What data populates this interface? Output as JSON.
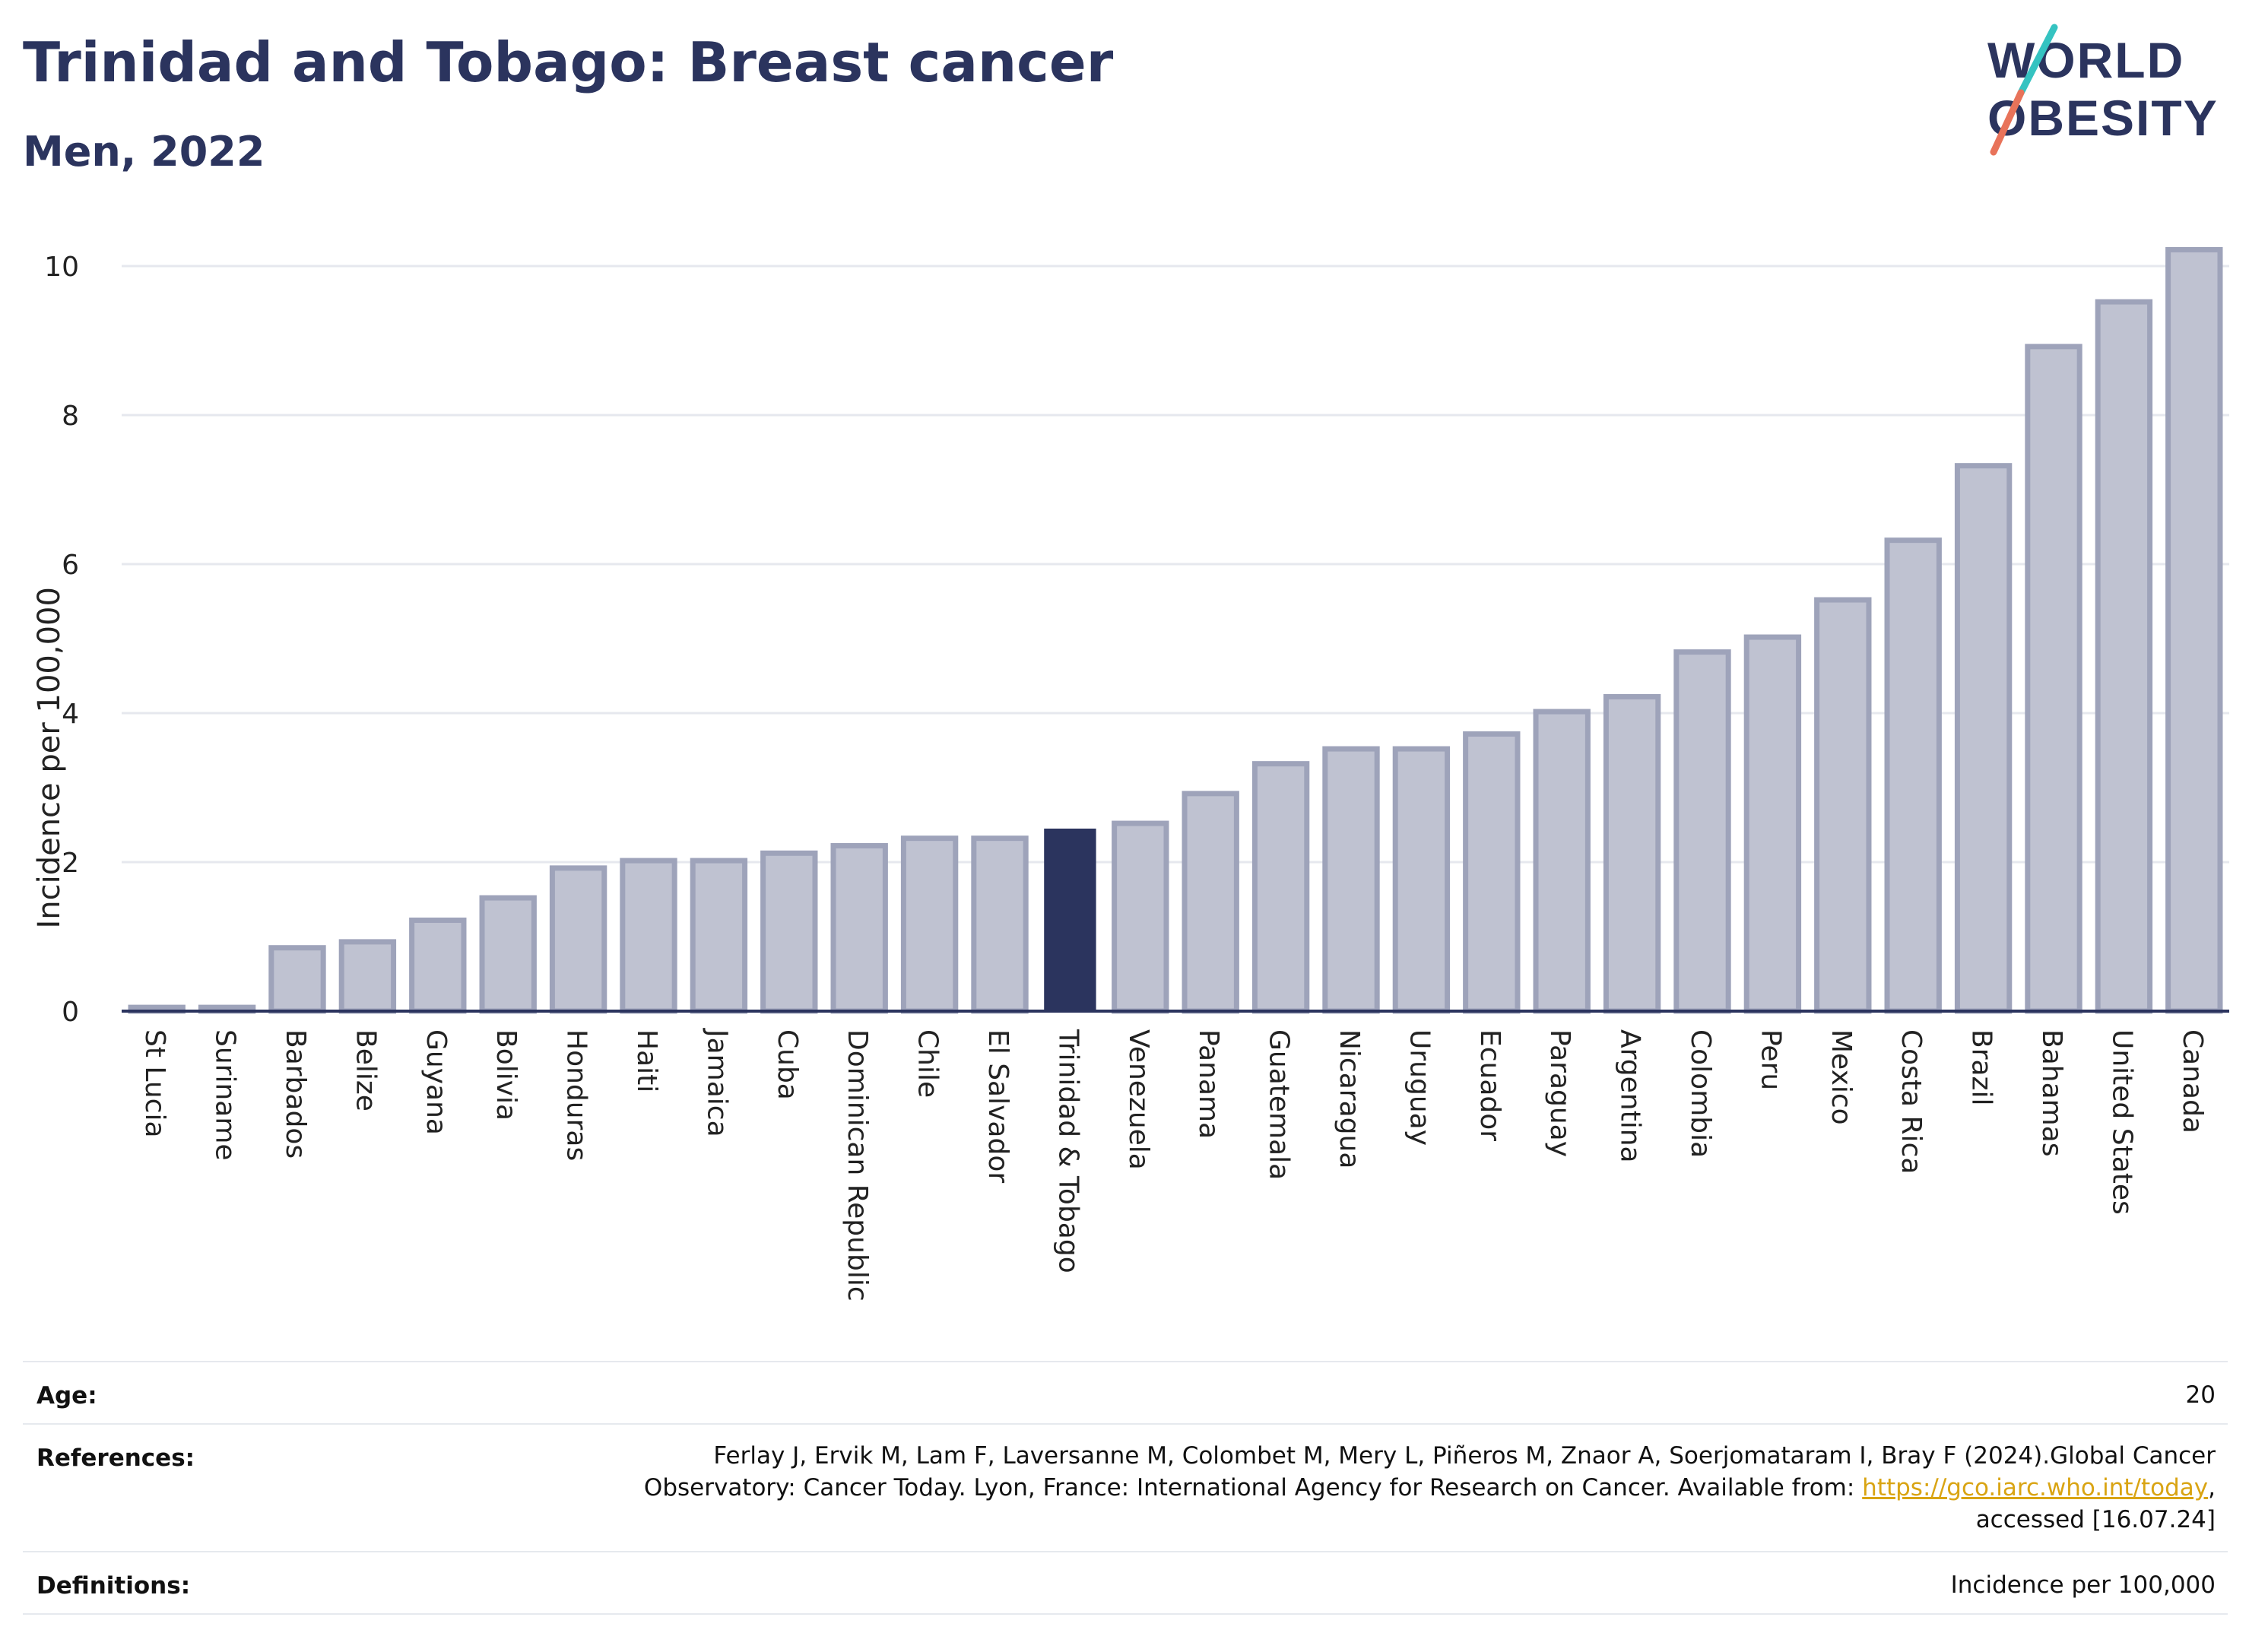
{
  "header": {
    "title": "Trinidad and Tobago: Breast cancer",
    "subtitle": "Men, 2022"
  },
  "logo": {
    "line1": "WORLD",
    "line2": "OBESITY"
  },
  "colors": {
    "bar_fill": "#bfc2d1",
    "bar_stroke": "#9ea3ba",
    "highlight": "#2b345e",
    "grid": "#e6e8ee",
    "text": "#2b345e"
  },
  "chart_data": {
    "type": "bar",
    "ylabel": "Incidence per 100,000",
    "ylim": [
      0,
      10.5
    ],
    "yticks": [
      0,
      2,
      4,
      6,
      8,
      10
    ],
    "grid": true,
    "highlight": "Trinidad & Tobago",
    "categories": [
      "St Lucia",
      "Suriname",
      "Barbados",
      "Belize",
      "Guyana",
      "Bolivia",
      "Honduras",
      "Haiti",
      "Jamaica",
      "Cuba",
      "Dominican Republic",
      "Chile",
      "El Salvador",
      "Trinidad & Tobago",
      "Venezuela",
      "Panama",
      "Guatemala",
      "Nicaragua",
      "Uruguay",
      "Ecuador",
      "Paraguay",
      "Argentina",
      "Colombia",
      "Peru",
      "Mexico",
      "Costa Rica",
      "Brazil",
      "Bahamas",
      "United States",
      "Canada"
    ],
    "values": [
      0.05,
      0.05,
      0.85,
      0.93,
      1.22,
      1.52,
      1.92,
      2.02,
      2.02,
      2.12,
      2.22,
      2.32,
      2.32,
      2.45,
      2.52,
      2.92,
      3.32,
      3.52,
      3.52,
      3.72,
      4.02,
      4.22,
      4.82,
      5.02,
      5.52,
      6.32,
      7.32,
      8.92,
      9.52,
      10.22
    ]
  },
  "meta": {
    "age_label": "Age:",
    "age_value": "20",
    "references_label": "References:",
    "references_line1": "Ferlay J, Ervik M, Lam F, Laversanne M, Colombet M, Mery L, Piñeros M, Znaor A, Soerjomataram I, Bray F (2024).Global Cancer",
    "references_line2_prefix": "Observatory: Cancer Today. Lyon, France: International Agency for Research on Cancer. Available from: ",
    "references_link": "https://gco.iarc.who.int/today",
    "references_line2_suffix": ",",
    "references_line3": "accessed [16.07.24]",
    "definitions_label": "Definitions:",
    "definitions_value": "Incidence per 100,000"
  }
}
